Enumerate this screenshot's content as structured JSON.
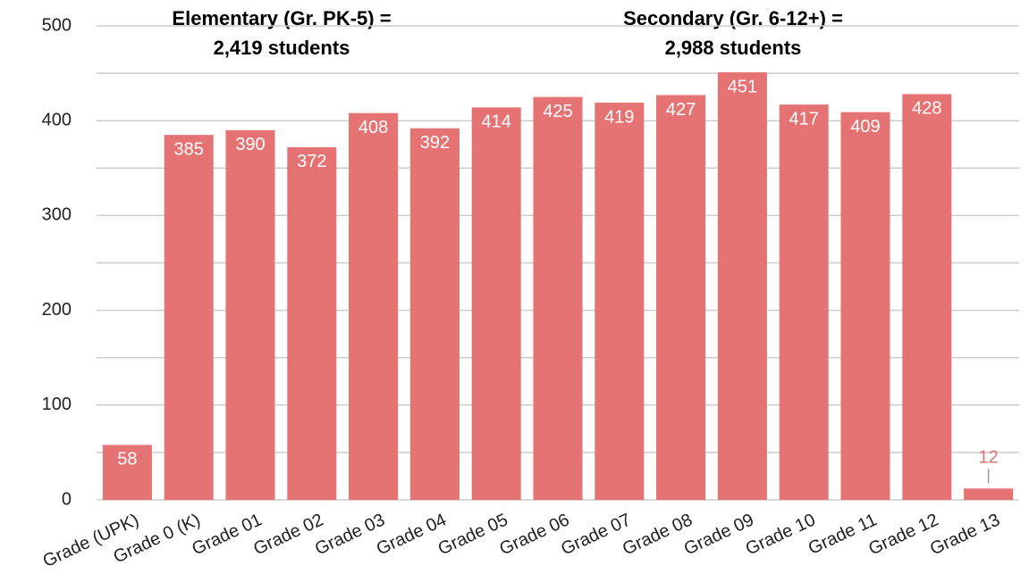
{
  "chart_data": {
    "type": "bar",
    "annotations": [
      [
        "Elementary (Gr. PK-5) =",
        "2,419 students"
      ],
      [
        "Secondary (Gr. 6-12+) =",
        "2,988 students"
      ]
    ],
    "categories": [
      "Grade (UPK)",
      "Grade 0 (K)",
      "Grade 01",
      "Grade 02",
      "Grade 03",
      "Grade 04",
      "Grade 05",
      "Grade 06",
      "Grade 07",
      "Grade 08",
      "Grade 09",
      "Grade 10",
      "Grade 11",
      "Grade 12",
      "Grade 13"
    ],
    "values": [
      58,
      385,
      390,
      372,
      408,
      392,
      414,
      425,
      419,
      427,
      451,
      417,
      409,
      428,
      12
    ],
    "color": "#e57373",
    "ylim": [
      0,
      500
    ],
    "yticks": [
      0,
      100,
      200,
      300,
      400,
      500
    ],
    "yminor": [
      50,
      150,
      250,
      350,
      450
    ],
    "grid": true
  }
}
